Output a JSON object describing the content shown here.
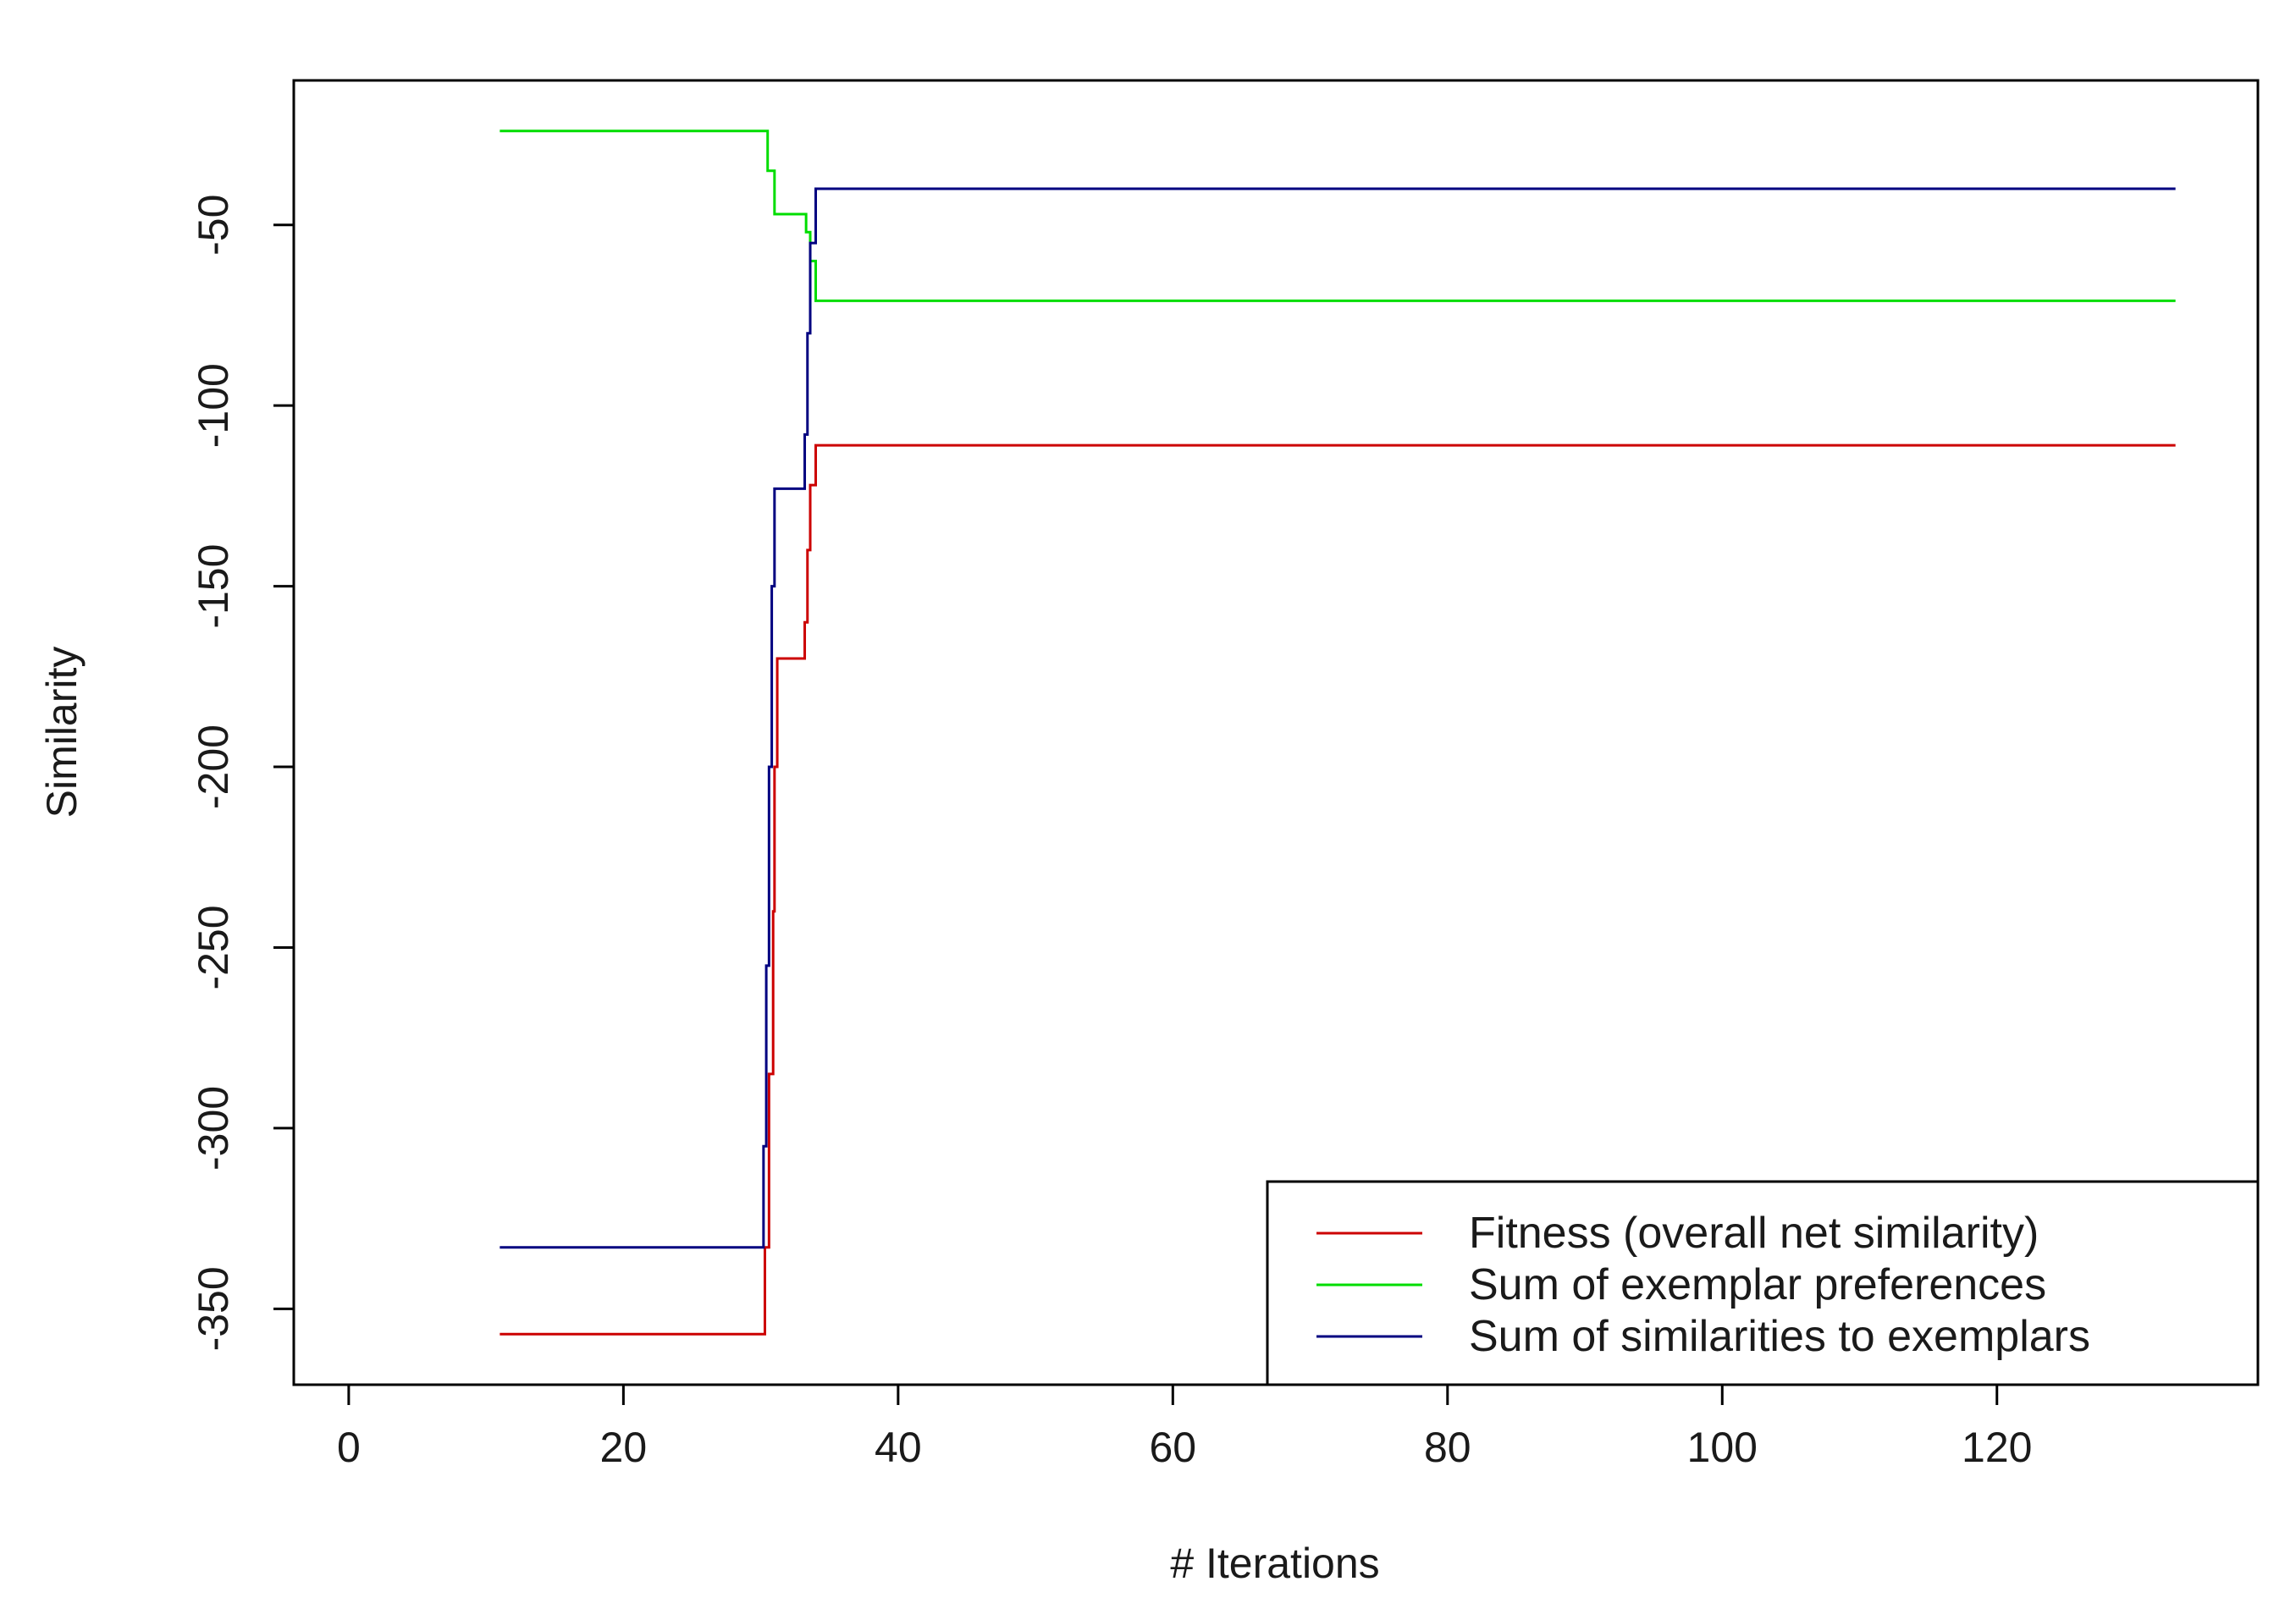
{
  "chart_data": {
    "type": "line",
    "title": "",
    "xlabel": "# Iterations",
    "ylabel": "Similarity",
    "xlim": [
      -4,
      139
    ],
    "ylim": [
      -371,
      -10
    ],
    "x_ticks": [
      0,
      20,
      40,
      60,
      80,
      100,
      120
    ],
    "y_ticks": [
      -50,
      -100,
      -150,
      -200,
      -250,
      -300,
      -350
    ],
    "grid": false,
    "legend_position": "bottom-right",
    "step": true,
    "series": [
      {
        "name": "Fitness (overall net similarity)",
        "color": "#cc0000",
        "points": [
          [
            11,
            -357
          ],
          [
            30,
            -357
          ],
          [
            30.3,
            -333
          ],
          [
            30.6,
            -285
          ],
          [
            30.9,
            -240
          ],
          [
            31,
            -200
          ],
          [
            31.2,
            -170
          ],
          [
            33,
            -170
          ],
          [
            33.2,
            -160
          ],
          [
            33.4,
            -140
          ],
          [
            33.6,
            -122
          ],
          [
            34,
            -111
          ],
          [
            133,
            -111
          ]
        ]
      },
      {
        "name": "Sum of exemplar preferences",
        "color": "#00dd00",
        "points": [
          [
            11,
            -24
          ],
          [
            30,
            -24
          ],
          [
            30.5,
            -35
          ],
          [
            31,
            -47
          ],
          [
            33,
            -47
          ],
          [
            33.3,
            -52
          ],
          [
            33.6,
            -60
          ],
          [
            34,
            -71
          ],
          [
            133,
            -71
          ]
        ]
      },
      {
        "name": "Sum of similarities to exemplars",
        "color": "#000080",
        "points": [
          [
            11,
            -333
          ],
          [
            30,
            -333
          ],
          [
            30.2,
            -305
          ],
          [
            30.4,
            -255
          ],
          [
            30.6,
            -200
          ],
          [
            30.8,
            -150
          ],
          [
            31,
            -123
          ],
          [
            33,
            -123
          ],
          [
            33.2,
            -108
          ],
          [
            33.4,
            -80
          ],
          [
            33.6,
            -55
          ],
          [
            34,
            -40
          ],
          [
            133,
            -40
          ]
        ]
      }
    ]
  }
}
